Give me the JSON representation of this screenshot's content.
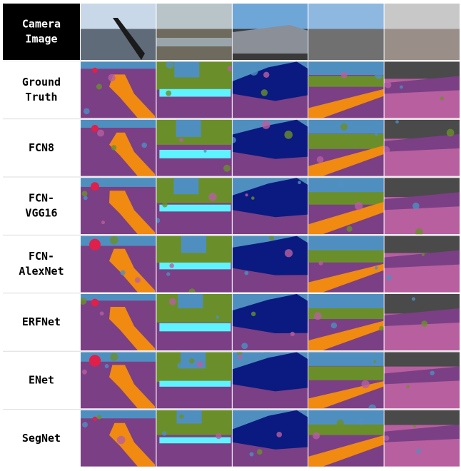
{
  "rows": [
    {
      "label": [
        "Camera",
        "Image"
      ]
    },
    {
      "label": [
        "Ground",
        "Truth"
      ]
    },
    {
      "label": [
        "FCN8"
      ]
    },
    {
      "label": [
        "FCN-",
        "VGG16"
      ]
    },
    {
      "label": [
        "FCN-",
        "AlexNet"
      ]
    },
    {
      "label": [
        "ERFNet"
      ]
    },
    {
      "label": [
        "ENet"
      ]
    },
    {
      "label": [
        "SegNet"
      ]
    }
  ]
}
